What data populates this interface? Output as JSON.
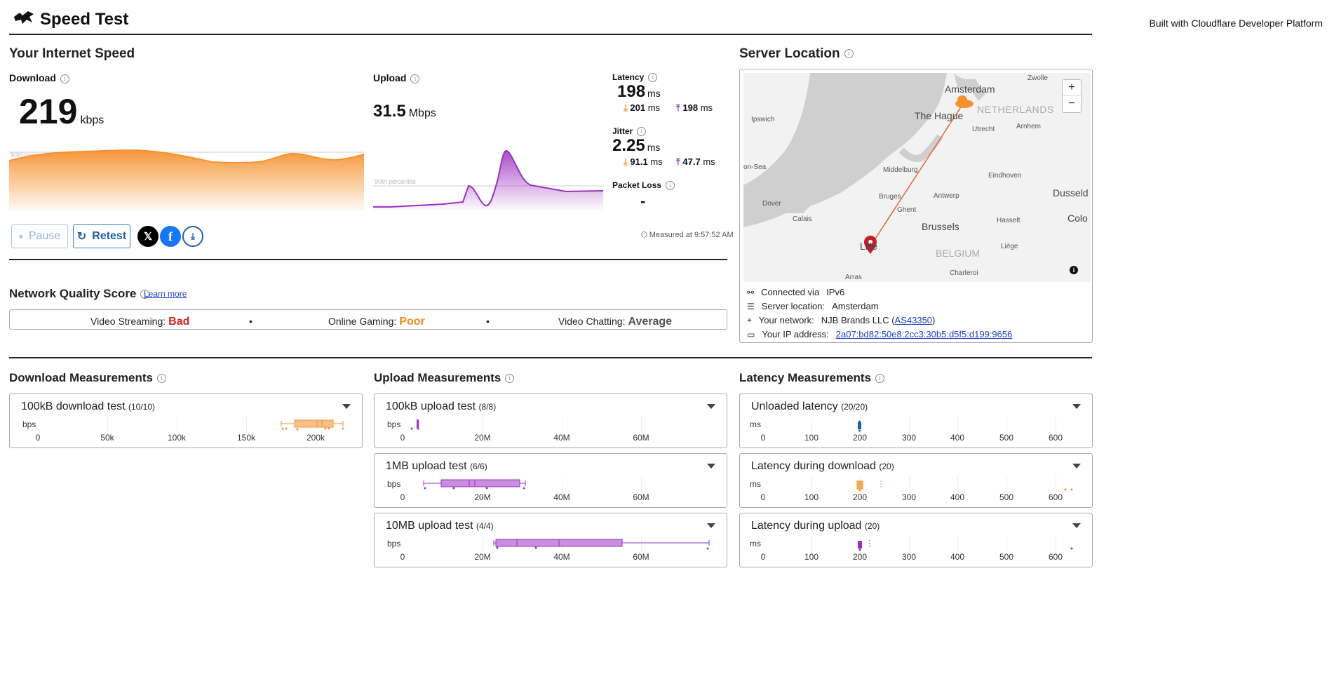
{
  "header": {
    "title": "Speed Test",
    "built_with": "Built with Cloudflare Developer Platform"
  },
  "speed": {
    "title": "Your Internet Speed",
    "download": {
      "label": "Download",
      "value": "219",
      "unit": "kbps",
      "percentile_label": "90th percentile"
    },
    "upload": {
      "label": "Upload",
      "value": "31.5",
      "unit": "Mbps",
      "percentile_label": "90th percentile"
    },
    "latency": {
      "label": "Latency",
      "value": "198",
      "unit": "ms",
      "down_value": "201",
      "up_value": "198",
      "sub_unit": "ms"
    },
    "jitter": {
      "label": "Jitter",
      "value": "2.25",
      "unit": "ms",
      "down_value": "91.1",
      "up_value": "47.7",
      "sub_unit": "ms"
    },
    "packet_loss": {
      "label": "Packet Loss",
      "value": "-"
    },
    "measured_at": "Measured at 9:57:52 AM",
    "buttons": {
      "pause": "Pause",
      "retest": "Retest"
    }
  },
  "quality": {
    "title": "Network Quality Score",
    "learn_more": "Learn more",
    "items": [
      {
        "label": "Video Streaming:",
        "value": "Bad",
        "color": "#d62020"
      },
      {
        "label": "Online Gaming:",
        "value": "Poor",
        "color": "#f08a1c"
      },
      {
        "label": "Video Chatting:",
        "value": "Average",
        "color": "#555555"
      }
    ],
    "separator": "•"
  },
  "server": {
    "title": "Server Location",
    "map_labels": {
      "amsterdam": "Amsterdam",
      "zwolle": "Zwolle",
      "the_hague": "The Hague",
      "netherlands": "NETHERLANDS",
      "ipswich": "Ipswich",
      "utrecht": "Utrecht",
      "arnhem": "Arnhem",
      "north_sea": "on-Sea",
      "middelburg": "Middelburg",
      "eindhoven": "Eindhoven",
      "dover": "Dover",
      "bruges": "Bruges",
      "antwerp": "Antwerp",
      "dusseldorf": "Dusseld",
      "ghent": "Ghent",
      "calais": "Calais",
      "brussels": "Brussels",
      "hasselt": "Hasselt",
      "cologne": "Colo",
      "lille": "Lille",
      "belgium": "BELGIUM",
      "liege": "Liège",
      "charleroi": "Charleroi",
      "arras": "Arras"
    },
    "zoom_in": "+",
    "zoom_out": "−",
    "info_button": "i",
    "connected_label": "Connected via",
    "connected_value": "IPv6",
    "location_label": "Server location:",
    "location_value": "Amsterdam",
    "network_label": "Your network:",
    "network_value": "NJB Brands LLC (",
    "network_as": "AS43350",
    "network_close": ")",
    "ip_label": "Your IP address:",
    "ip_value": "2a07:bd82:50e8:2cc3:30b5:d5f5:d199:9656"
  },
  "download_measurements": {
    "title": "Download Measurements",
    "panels": [
      {
        "title": "100kB download test",
        "count": "(10/10)",
        "axis_label": "bps",
        "ticks": [
          "0",
          "50k",
          "100k",
          "150k",
          "200k"
        ]
      }
    ]
  },
  "upload_measurements": {
    "title": "Upload Measurements",
    "panels": [
      {
        "title": "100kB upload test",
        "count": "(8/8)",
        "axis_label": "bps",
        "ticks": [
          "0",
          "20M",
          "40M",
          "60M"
        ]
      },
      {
        "title": "1MB upload test",
        "count": "(6/6)",
        "axis_label": "bps",
        "ticks": [
          "0",
          "20M",
          "40M",
          "60M"
        ]
      },
      {
        "title": "10MB upload test",
        "count": "(4/4)",
        "axis_label": "bps",
        "ticks": [
          "0",
          "20M",
          "40M",
          "60M"
        ]
      }
    ]
  },
  "latency_measurements": {
    "title": "Latency Measurements",
    "panels": [
      {
        "title": "Unloaded latency",
        "count": "(20/20)",
        "axis_label": "ms",
        "ticks": [
          "0",
          "100",
          "200",
          "300",
          "400",
          "500",
          "600"
        ]
      },
      {
        "title": "Latency during download",
        "count": "(20)",
        "axis_label": "ms",
        "ticks": [
          "0",
          "100",
          "200",
          "300",
          "400",
          "500",
          "600"
        ]
      },
      {
        "title": "Latency during upload",
        "count": "(20)",
        "axis_label": "ms",
        "ticks": [
          "0",
          "100",
          "200",
          "300",
          "400",
          "500",
          "600"
        ]
      }
    ]
  },
  "colors": {
    "download": "#f5922f",
    "upload": "#9b30c0",
    "link": "#1a3fc4"
  }
}
